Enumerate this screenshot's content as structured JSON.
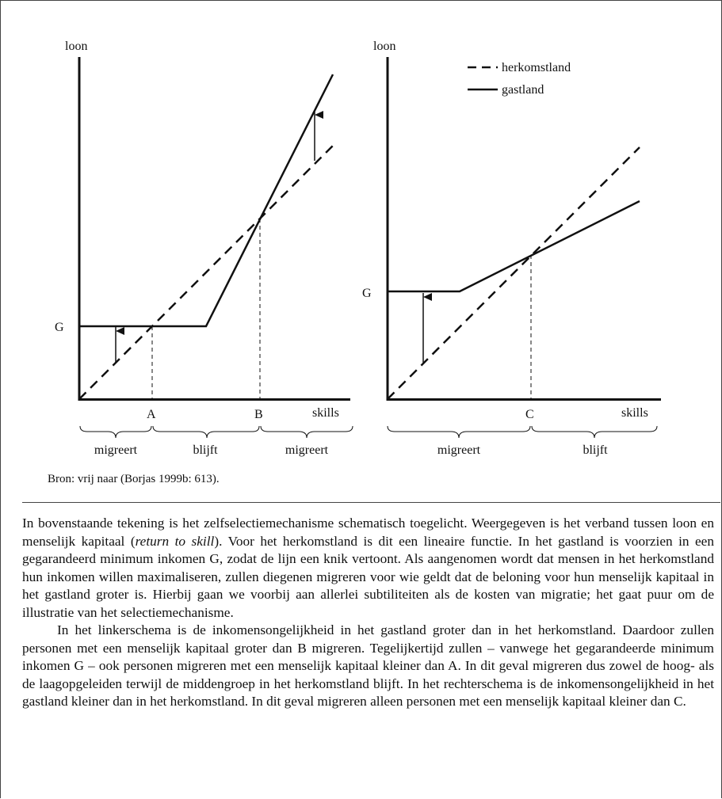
{
  "left_diagram": {
    "y_axis_label": "loon",
    "g_label": "G",
    "x_labels": [
      "A",
      "B"
    ],
    "x_axis_label": "skills",
    "group_labels": [
      "migreert",
      "blijft",
      "migreert"
    ]
  },
  "right_diagram": {
    "y_axis_label": "loon",
    "g_label": "G",
    "x_labels": [
      "C"
    ],
    "x_axis_label": "skills",
    "group_labels": [
      "migreert",
      "blijft"
    ],
    "legend": [
      {
        "style": "dashed",
        "label": "herkomstland"
      },
      {
        "style": "solid",
        "label": "gastland"
      }
    ]
  },
  "source": "Bron: vrij naar (Borjas 1999b: 613).",
  "paragraph1": {
    "before_italic": "In bovenstaande tekening is het zelfselectiemechanisme schematisch toegelicht. Weergegeven is het verband tussen loon en menselijk kapitaal (",
    "italic": "return to skill",
    "after_italic": "). Voor het herkomstland is dit een lineaire functie. In het gastland is voorzien in een gegarandeerd minimum inkomen G, zodat de lijn een knik vertoont. Als aangenomen wordt dat mensen in het herkomstland hun inkomen willen maximaliseren, zullen diegenen migreren voor wie geldt dat de beloning voor hun menselijk kapitaal in het gastland groter is. Hierbij gaan we voorbij aan allerlei subtiliteiten als de kosten van migratie; het gaat puur om de illustratie van het selectiemechanisme."
  },
  "paragraph2": "In het linkerschema is de inkomensongelijkheid in het gastland groter dan in het herkomstland. Daardoor zullen personen met een menselijk kapitaal groter dan B migreren. Tegelijkertijd zullen – vanwege het gegarandeerde minimum inkomen G – ook personen migreren met een menselijk kapitaal kleiner dan A. In dit geval migreren dus zowel de hoog- als de laagopgeleiden terwijl de middengroep in het herkomstland blijft. In het rechterschema is de inkomensongelijkheid in het gastland kleiner dan in het herkomstland. In dit geval migreren alleen personen met een menselijk kapitaal kleiner dan C."
}
